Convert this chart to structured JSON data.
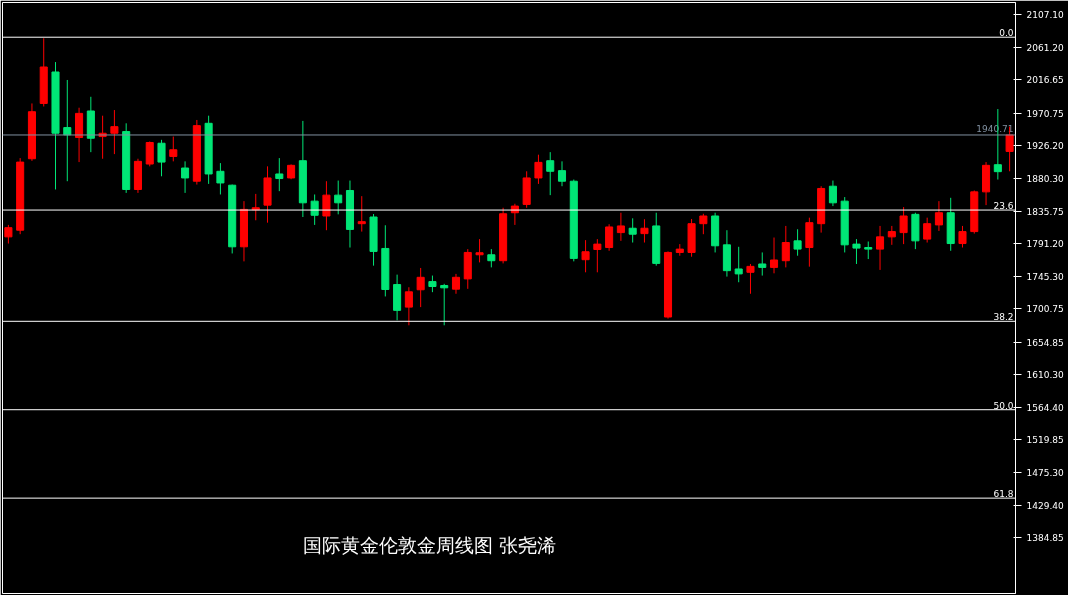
{
  "chart_data": {
    "type": "candlestick",
    "annotations": [
      "国际黄金伦敦金周线图  张尧浠",
      {
        "text": "0.0",
        "y": 2075.6
      },
      {
        "text": "23.6",
        "y": 1837.1
      },
      {
        "text": "38.2",
        "y": 1683.6
      },
      {
        "text": "50.0",
        "y": 1561.6
      },
      {
        "text": "61.8",
        "y": 1439.6
      }
    ],
    "categories": [
      null,
      null,
      null,
      null,
      null,
      null,
      null,
      null,
      null,
      null,
      null,
      null,
      null,
      null,
      null,
      null,
      null,
      null,
      null,
      null,
      null,
      null,
      null,
      null,
      null,
      null,
      null,
      null,
      null,
      null,
      null,
      null,
      null,
      null,
      null,
      null,
      null,
      null,
      null,
      null,
      null,
      null,
      null,
      null,
      null,
      null,
      null,
      null,
      null,
      null,
      null,
      null,
      null,
      null,
      null,
      null,
      null,
      null,
      null,
      null,
      null,
      null,
      null,
      null,
      null,
      null,
      null,
      null,
      null,
      null,
      null,
      null,
      null,
      null,
      null,
      null,
      null,
      null,
      null,
      null,
      null,
      null,
      null,
      null,
      null,
      null
    ],
    "ohlc": [
      [
        1800.1,
        1816.6,
        1790.9,
        1812.8
      ],
      [
        1809.3,
        1908.8,
        1803.8,
        1903.3
      ],
      [
        1907.9,
        1984.2,
        1905.0,
        1972.8
      ],
      [
        1984.2,
        2074.2,
        1980.0,
        2034.5
      ],
      [
        2027.6,
        2041.3,
        1865.5,
        1943.1
      ],
      [
        1950.9,
        2016.6,
        1876.9,
        1940.9
      ],
      [
        1937.2,
        1978.3,
        1903.3,
        1970.5
      ],
      [
        1973.8,
        1993.4,
        1917.0,
        1936.2
      ],
      [
        1938.5,
        1967.3,
        1907.9,
        1943.1
      ],
      [
        1943.1,
        1975.1,
        1914.3,
        1952.2
      ],
      [
        1945.4,
        1956.8,
        1860.8,
        1865.5
      ],
      [
        1865.5,
        1907.9,
        1860.8,
        1904.3
      ],
      [
        1900.6,
        1931.7,
        1897.4,
        1930.3
      ],
      [
        1929.3,
        1934.0,
        1883.7,
        1903.3
      ],
      [
        1911.1,
        1938.5,
        1904.3,
        1920.3
      ],
      [
        1895.1,
        1904.3,
        1860.8,
        1881.4
      ],
      [
        1876.9,
        1961.4,
        1872.3,
        1953.6
      ],
      [
        1956.8,
        1967.3,
        1873.2,
        1886.9
      ],
      [
        1890.6,
        1901.9,
        1858.6,
        1874.5
      ],
      [
        1871.4,
        1872.3,
        1777.2,
        1786.4
      ],
      [
        1786.4,
        1849.4,
        1766.3,
        1838.0
      ],
      [
        1837.5,
        1859.4,
        1823.0,
        1840.3
      ],
      [
        1843.9,
        1897.4,
        1819.7,
        1881.4
      ],
      [
        1886.9,
        1908.8,
        1863.2,
        1880.6
      ],
      [
        1881.4,
        1900.1,
        1879.6,
        1898.8
      ],
      [
        1905.2,
        1960.1,
        1827.5,
        1847.1
      ],
      [
        1849.4,
        1858.6,
        1816.6,
        1829.9
      ],
      [
        1828.9,
        1876.9,
        1809.3,
        1857.7
      ],
      [
        1857.7,
        1877.8,
        1831.2,
        1847.1
      ],
      [
        1864.1,
        1877.8,
        1785.4,
        1810.4
      ],
      [
        1818.3,
        1856.3,
        1807.4,
        1821.1
      ],
      [
        1827.5,
        1831.6,
        1760.4,
        1780.0
      ],
      [
        1784.1,
        1816.1,
        1717.9,
        1727.5
      ],
      [
        1734.3,
        1748.0,
        1685.0,
        1698.7
      ],
      [
        1703.2,
        1730.6,
        1678.1,
        1724.3
      ],
      [
        1727.1,
        1757.2,
        1703.2,
        1744.3
      ],
      [
        1738.4,
        1746.7,
        1723.8,
        1731.6
      ],
      [
        1733.0,
        1735.3,
        1678.1,
        1729.8
      ],
      [
        1727.9,
        1749.0,
        1721.6,
        1744.3
      ],
      [
        1742.1,
        1783.2,
        1728.4,
        1778.6
      ],
      [
        1775.4,
        1797.0,
        1764.9,
        1778.2
      ],
      [
        1775.4,
        1783.2,
        1758.0,
        1767.2
      ],
      [
        1767.2,
        1840.3,
        1763.5,
        1832.0
      ],
      [
        1833.4,
        1845.8,
        1816.6,
        1842.6
      ],
      [
        1844.9,
        1890.6,
        1840.3,
        1881.4
      ],
      [
        1881.4,
        1913.5,
        1873.2,
        1902.9
      ],
      [
        1905.2,
        1917.0,
        1857.7,
        1890.6
      ],
      [
        1891.5,
        1904.3,
        1870.0,
        1876.9
      ],
      [
        1876.9,
        1879.2,
        1766.3,
        1770.4
      ],
      [
        1768.6,
        1795.6,
        1751.2,
        1779.6
      ],
      [
        1782.7,
        1797.0,
        1751.2,
        1790.1
      ],
      [
        1785.4,
        1817.5,
        1780.9,
        1813.8
      ],
      [
        1806.0,
        1833.4,
        1794.6,
        1815.2
      ],
      [
        1812.0,
        1825.7,
        1792.3,
        1803.8
      ],
      [
        1804.6,
        1824.4,
        1792.3,
        1812.0
      ],
      [
        1815.2,
        1833.4,
        1760.4,
        1763.5
      ],
      [
        1689.5,
        1780.0,
        1687.3,
        1778.6
      ],
      [
        1778.6,
        1790.1,
        1774.1,
        1783.2
      ],
      [
        1778.6,
        1824.8,
        1772.7,
        1818.3
      ],
      [
        1818.3,
        1832.0,
        1803.8,
        1828.9
      ],
      [
        1828.9,
        1833.4,
        1778.6,
        1787.8
      ],
      [
        1789.1,
        1809.3,
        1745.3,
        1753.5
      ],
      [
        1755.8,
        1786.4,
        1737.5,
        1749.0
      ],
      [
        1751.2,
        1762.7,
        1721.6,
        1759.4
      ],
      [
        1762.7,
        1778.6,
        1746.7,
        1758.0
      ],
      [
        1758.0,
        1799.2,
        1749.8,
        1768.2
      ],
      [
        1767.2,
        1815.2,
        1758.0,
        1792.3
      ],
      [
        1794.6,
        1810.6,
        1774.1,
        1783.2
      ],
      [
        1785.4,
        1826.6,
        1759.0,
        1819.7
      ],
      [
        1818.3,
        1870.0,
        1806.0,
        1866.9
      ],
      [
        1870.0,
        1877.8,
        1842.6,
        1847.1
      ],
      [
        1849.4,
        1855.0,
        1778.6,
        1789.1
      ],
      [
        1790.1,
        1797.0,
        1762.7,
        1784.6
      ],
      [
        1785.4,
        1793.7,
        1769.5,
        1783.2
      ],
      [
        1783.2,
        1815.2,
        1754.5,
        1800.1
      ],
      [
        1800.1,
        1815.2,
        1789.1,
        1807.4
      ],
      [
        1806.0,
        1841.2,
        1790.1,
        1828.9
      ],
      [
        1831.2,
        1833.4,
        1783.2,
        1794.6
      ],
      [
        1797.0,
        1826.6,
        1792.3,
        1818.3
      ],
      [
        1816.6,
        1849.4,
        1808.3,
        1833.4
      ],
      [
        1833.4,
        1854.0,
        1780.9,
        1790.9
      ],
      [
        1790.9,
        1815.2,
        1785.4,
        1807.4
      ],
      [
        1807.4,
        1864.1,
        1804.6,
        1862.2
      ],
      [
        1862.2,
        1903.3,
        1843.9,
        1898.8
      ],
      [
        1899.7,
        1976.5,
        1879.2,
        1890.1
      ],
      [
        1918.0,
        1952.2,
        1890.6,
        1940.71
      ]
    ],
    "colors": [
      "#ff0000",
      "#ff0000",
      "#ff0000",
      "#ff0000",
      "#00e676",
      "#00e676",
      "#ff0000",
      "#00e676",
      "#ff0000",
      "#ff0000",
      "#00e676",
      "#ff0000",
      "#ff0000",
      "#00e676",
      "#ff0000",
      "#00e676",
      "#ff0000",
      "#00e676",
      "#00e676",
      "#00e676",
      "#ff0000",
      "#ff0000",
      "#ff0000",
      "#00e676",
      "#ff0000",
      "#00e676",
      "#00e676",
      "#ff0000",
      "#00e676",
      "#00e676",
      "#ff0000",
      "#00e676",
      "#00e676",
      "#00e676",
      "#ff0000",
      "#ff0000",
      "#00e676",
      "#00e676",
      "#ff0000",
      "#ff0000",
      "#ff0000",
      "#00e676",
      "#ff0000",
      "#ff0000",
      "#ff0000",
      "#ff0000",
      "#00e676",
      "#00e676",
      "#00e676",
      "#ff0000",
      "#ff0000",
      "#ff0000",
      "#ff0000",
      "#00e676",
      "#ff0000",
      "#00e676",
      "#ff0000",
      "#ff0000",
      "#ff0000",
      "#ff0000",
      "#00e676",
      "#00e676",
      "#00e676",
      "#ff0000",
      "#00e676",
      "#ff0000",
      "#ff0000",
      "#00e676",
      "#ff0000",
      "#ff0000",
      "#00e676",
      "#00e676",
      "#00e676",
      "#00e676",
      "#ff0000",
      "#ff0000",
      "#ff0000",
      "#00e676",
      "#ff0000",
      "#ff0000",
      "#00e676",
      "#ff0000",
      "#ff0000",
      "#ff0000",
      "#00e676",
      "#ff0000"
    ],
    "ref_lines": [
      {
        "axis": "y",
        "value": 2075.6,
        "color": "#ffffff"
      },
      {
        "axis": "y",
        "value": 1837.1,
        "color": "#ffffff"
      },
      {
        "axis": "y",
        "value": 1683.6,
        "color": "#ffffff"
      },
      {
        "axis": "y",
        "value": 1561.6,
        "color": "#ffffff"
      },
      {
        "axis": "y",
        "value": 1439.6,
        "color": "#ffffff"
      },
      {
        "axis": "y",
        "value": 1940.71,
        "label": "1940.71",
        "color": "#8090a0"
      }
    ],
    "ylim": [
      1308.0,
      2123.5
    ],
    "yticks": [
      {
        "value": 2107.1,
        "label": "2107.10"
      },
      {
        "value": 2061.2,
        "label": "2061.20"
      },
      {
        "value": 2016.65,
        "label": "2016.65"
      },
      {
        "value": 1970.75,
        "label": "1970.75"
      },
      {
        "value": 1926.2,
        "label": "1926.20"
      },
      {
        "value": 1880.3,
        "label": "1880.30"
      },
      {
        "value": 1835.75,
        "label": "1835.75"
      },
      {
        "value": 1791.2,
        "label": "1791.20"
      },
      {
        "value": 1745.3,
        "label": "1745.30"
      },
      {
        "value": 1700.75,
        "label": "1700.75"
      },
      {
        "value": 1654.85,
        "label": "1654.85"
      },
      {
        "value": 1610.3,
        "label": "1610.30"
      },
      {
        "value": 1564.4,
        "label": "1564.40"
      },
      {
        "value": 1519.85,
        "label": "1519.85"
      },
      {
        "value": 1475.3,
        "label": "1475.30"
      },
      {
        "value": 1429.4,
        "label": "1429.40"
      },
      {
        "value": 1384.85,
        "label": "1384.85"
      }
    ],
    "tick_labels": "y",
    "grid": false
  }
}
